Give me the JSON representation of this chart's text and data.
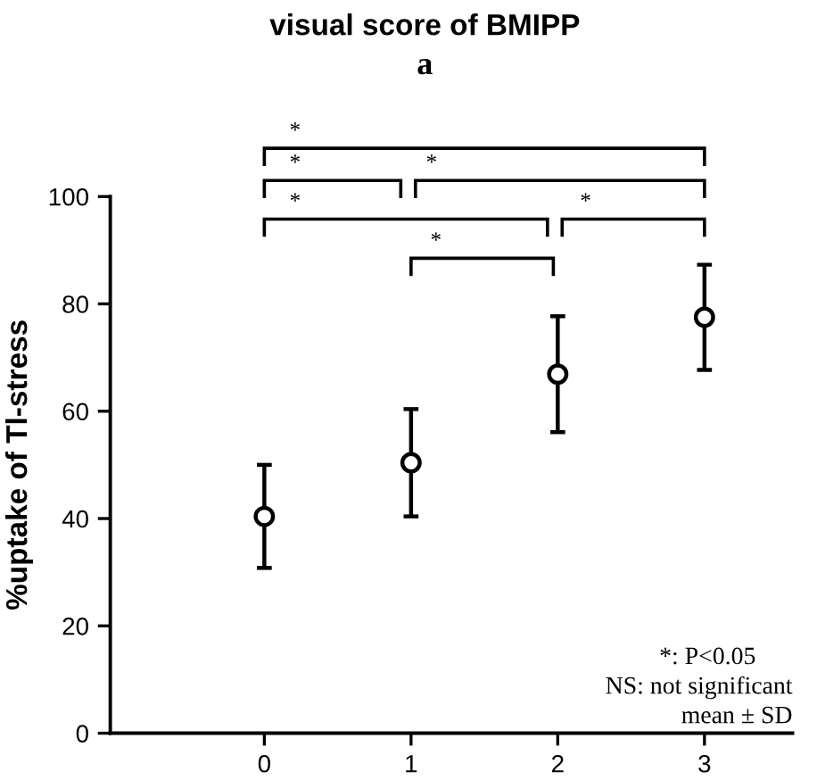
{
  "chart_data": {
    "type": "scatter",
    "title": "visual score of BMIPP",
    "subtitle": "a",
    "ylabel": "%uptake of Tl-stress",
    "x": [
      0,
      1,
      2,
      3
    ],
    "values": [
      40.4,
      50.4,
      66.9,
      77.5
    ],
    "errors": [
      9.6,
      10,
      10.8,
      9.8
    ],
    "color": "#000000",
    "marker": "circle",
    "grid": false,
    "legend": false,
    "xlim": [
      -1.05,
      3.6
    ],
    "xticks": [
      0,
      1,
      2,
      3
    ],
    "ylim": [
      0,
      100
    ],
    "yticks": [
      0,
      20,
      40,
      60,
      80,
      100
    ],
    "annotations": [
      "*",
      "*",
      "*",
      "*",
      "*",
      "*",
      "*: P<0.05",
      "NS: not significant",
      "mean ± SD"
    ]
  }
}
